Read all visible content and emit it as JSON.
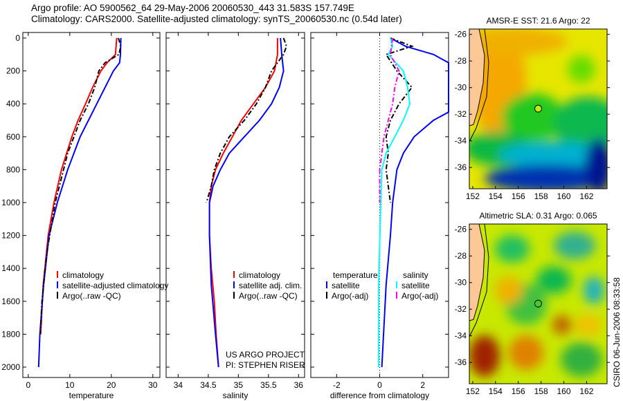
{
  "header": {
    "line1": "Argo profile: AO 5900562_64 29-May-2006 20060530_443 31.583S 157.749E",
    "line2": "Climatology: CARS2000. Satellite-adjusted climatology: synTS_20060530.nc (0.54d later)"
  },
  "side_label": "CSIRO 06-Jun-2006 08:33:58",
  "project_credit": [
    "US ARGO PROJECT",
    "PI: STEPHEN RISER"
  ],
  "colors": {
    "climatology": "#ff0000",
    "satellite": "#0000ff",
    "argo": "#000000",
    "sal_satellite": "#00ffff",
    "sal_argo": "#ff00ff"
  },
  "chart_data": [
    {
      "type": "line",
      "xlabel": "temperature",
      "ylabel": "",
      "xlim": [
        -1.3,
        31.7
      ],
      "ylim": [
        2000,
        0
      ],
      "xticks": [
        0,
        10,
        20,
        30
      ],
      "yticks": [
        0,
        200,
        400,
        600,
        800,
        1000,
        1200,
        1400,
        1600,
        1800,
        2000
      ],
      "legend": {
        "placement": "bottom-right",
        "entries": [
          "climatology",
          "satellite-adjusted climatology",
          "Argo(..raw -QC)"
        ]
      },
      "series": [
        {
          "name": "climatology",
          "color": "#ff0000",
          "style": "solid",
          "depth": [
            0,
            100,
            150,
            200,
            300,
            400,
            500,
            600,
            800,
            1000,
            1200,
            1500,
            1800
          ],
          "values": [
            21.3,
            21,
            19,
            17.5,
            15.5,
            13.8,
            12,
            10.5,
            8,
            6.2,
            4.8,
            3.6,
            3.0
          ]
        },
        {
          "name": "satellite-adjusted climatology",
          "color": "#0000ff",
          "style": "solid",
          "depth": [
            0,
            100,
            150,
            200,
            300,
            400,
            500,
            600,
            800,
            1000,
            1200,
            1500,
            1800,
            2000
          ],
          "values": [
            22.3,
            22.2,
            22,
            20.5,
            18.5,
            16.5,
            14.5,
            12.5,
            9.5,
            7,
            5,
            3.7,
            2.8,
            2.5
          ]
        },
        {
          "name": "Argo(..raw -QC)",
          "color": "#000000",
          "style": "dashed",
          "depth": [
            0,
            50,
            100,
            150,
            200,
            300,
            400,
            500,
            700,
            1000,
            1300,
            1600,
            1800
          ],
          "values": [
            21.7,
            22.3,
            21.8,
            18.5,
            17,
            16,
            14.5,
            12.5,
            9.5,
            6.5,
            4.5,
            3.3,
            2.9
          ]
        }
      ]
    },
    {
      "type": "line",
      "xlabel": "salinity",
      "xlim": [
        33.8,
        36.1
      ],
      "ylim": [
        2000,
        0
      ],
      "xticks": [
        34,
        34.5,
        35,
        35.5,
        36
      ],
      "legend": {
        "placement": "bottom-right",
        "entries": [
          "climatology",
          "satellite adj. clim.",
          "Argo(..raw -QC)"
        ]
      },
      "series": [
        {
          "name": "climatology",
          "color": "#ff0000",
          "style": "solid",
          "depth": [
            0,
            100,
            200,
            300,
            400,
            500,
            600,
            700,
            800,
            900,
            1000,
            1200,
            1400,
            1600,
            1800,
            2000
          ],
          "values": [
            35.65,
            35.65,
            35.6,
            35.45,
            35.25,
            35.05,
            34.9,
            34.75,
            34.62,
            34.55,
            34.52,
            34.52,
            34.55,
            34.6,
            34.63,
            34.67
          ]
        },
        {
          "name": "satellite adj. clim.",
          "color": "#0000ff",
          "style": "solid",
          "depth": [
            0,
            100,
            200,
            300,
            400,
            500,
            600,
            700,
            800,
            900,
            1000,
            1200,
            1500,
            1800,
            2000
          ],
          "values": [
            35.7,
            35.72,
            35.75,
            35.68,
            35.55,
            35.35,
            35.1,
            34.85,
            34.7,
            34.58,
            34.52,
            34.52,
            34.55,
            34.62,
            34.67
          ]
        },
        {
          "name": "Argo(..raw -QC)",
          "color": "#000000",
          "style": "dashed",
          "depth": [
            0,
            50,
            100,
            200,
            300,
            400,
            500,
            600,
            700,
            800,
            900,
            1000
          ],
          "values": [
            35.75,
            35.8,
            35.75,
            35.55,
            35.45,
            35.3,
            35.1,
            34.85,
            34.7,
            34.6,
            34.55,
            34.47
          ]
        }
      ]
    },
    {
      "type": "line",
      "xlabel": "difference from climatology",
      "xlim": [
        -3.2,
        3.2
      ],
      "ylim": [
        2000,
        0
      ],
      "xticks": [
        -2,
        0,
        2
      ],
      "legend": {
        "placement": "bottom",
        "headers": [
          "temperature",
          "salinity"
        ],
        "entries": [
          "satellite",
          "Argo(-adj)",
          "satellite",
          "Argo(-adj)"
        ]
      },
      "series": [
        {
          "name": "temperature satellite",
          "color": "#0000ff",
          "style": "solid",
          "depth": [
            0,
            50,
            100,
            150,
            450,
            500,
            600,
            700,
            800,
            1000,
            1200,
            1500,
            2000
          ],
          "values": [
            0.5,
            1.2,
            2.5,
            3.4,
            3.4,
            2.5,
            1.6,
            1.1,
            0.8,
            0.6,
            0.5,
            0.3,
            0.1
          ]
        },
        {
          "name": "temperature Argo(-adj)",
          "color": "#000000",
          "style": "dashed",
          "depth": [
            0,
            50,
            100,
            200,
            300,
            400,
            500,
            600,
            700,
            800,
            900,
            1000
          ],
          "values": [
            0.5,
            1.5,
            0.3,
            0.8,
            1.5,
            0.9,
            0.5,
            0.3,
            0.4,
            0.3,
            0.4,
            0.5
          ]
        },
        {
          "name": "salinity satellite",
          "color": "#00ffff",
          "style": "solid",
          "depth": [
            0,
            50,
            100,
            200,
            300,
            400,
            500,
            600,
            700,
            800,
            1000,
            1500,
            2000
          ],
          "values": [
            0.5,
            0.6,
            0.4,
            1.1,
            1.3,
            1.4,
            1.1,
            0.7,
            0.3,
            0.1,
            0.05,
            -0.05,
            -0.05
          ]
        },
        {
          "name": "salinity Argo(-adj)",
          "color": "#ff00ff",
          "style": "dashed",
          "depth": [
            0,
            100,
            200,
            300,
            400,
            500,
            600,
            700,
            800,
            1000
          ],
          "values": [
            0.6,
            0.5,
            0.9,
            0.7,
            0.6,
            0.4,
            0.2,
            0.1,
            0.0,
            0.0
          ]
        }
      ]
    },
    {
      "type": "heatmap",
      "title": "AMSR-E SST: 21.6 Argo: 22",
      "xticks": [
        152,
        154,
        156,
        158,
        160,
        162
      ],
      "yticks": [
        -26,
        -28,
        -30,
        -32,
        -34,
        -36
      ],
      "xlim": [
        151.7,
        163.8
      ],
      "ylim": [
        -37.6,
        -25.6
      ],
      "marker": {
        "lon": 157.749,
        "lat": -31.583
      }
    },
    {
      "type": "heatmap",
      "title": "Altimetric SLA: 0.31 Argo: 0.065",
      "xticks": [
        152,
        154,
        156,
        158,
        160,
        162
      ],
      "yticks": [
        -26,
        -28,
        -30,
        -32,
        -34,
        -36
      ],
      "xlim": [
        151.7,
        163.8
      ],
      "ylim": [
        -37.6,
        -25.6
      ],
      "marker": {
        "lon": 157.749,
        "lat": -31.583
      }
    }
  ]
}
